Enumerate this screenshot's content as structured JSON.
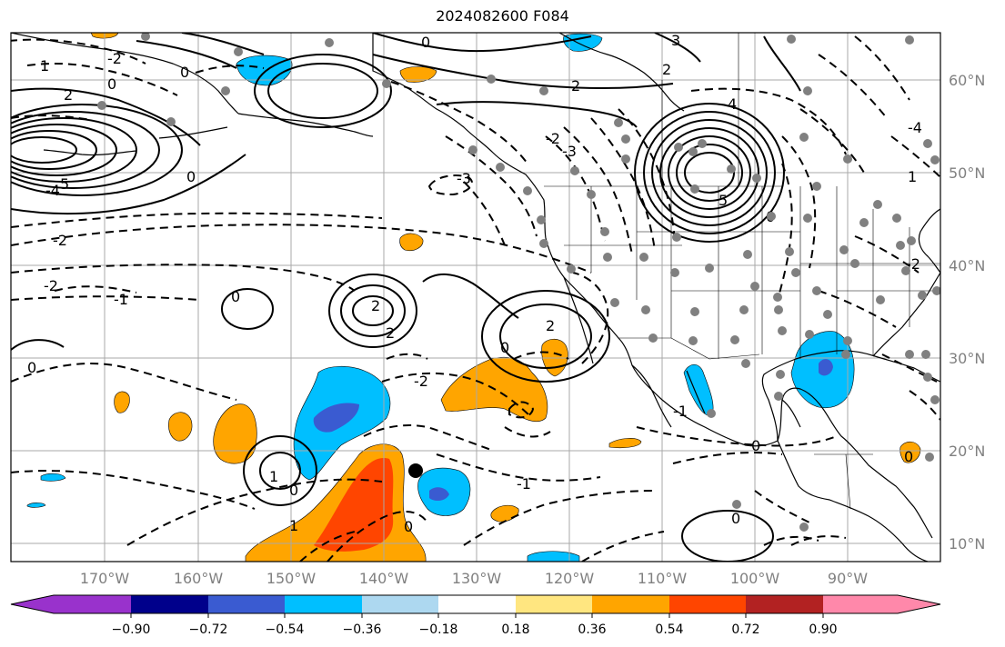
{
  "title": "2024082600 F084",
  "map": {
    "lat_labels": [
      "60°N",
      "50°N",
      "40°N",
      "30°N",
      "20°N",
      "10°N"
    ],
    "lon_labels": [
      "170°W",
      "160°W",
      "150°W",
      "140°W",
      "130°W",
      "120°W",
      "110°W",
      "100°W",
      "90°W"
    ],
    "contour_labels": [
      "0",
      "-1",
      "-2",
      "-3",
      "-4",
      "-5",
      "1",
      "2",
      "3",
      "4",
      "5"
    ],
    "colors": {
      "grid": "#a9a9a9",
      "contour": "#000000",
      "coast": "#000000",
      "station": "#808080",
      "storm_marker": "#000000",
      "tick_label": "#808080"
    }
  },
  "colorbar": {
    "ticks": [
      "−0.90",
      "−0.72",
      "−0.54",
      "−0.36",
      "−0.18",
      "0.18",
      "0.36",
      "0.54",
      "0.72",
      "0.90"
    ],
    "colors": [
      "#9932cc",
      "#00008b",
      "#3a5bd1",
      "#00bfff",
      "#add8f0",
      "#ffffff",
      "#ffe680",
      "#ffa500",
      "#ff4500",
      "#b22222",
      "#ff88aa"
    ]
  }
}
